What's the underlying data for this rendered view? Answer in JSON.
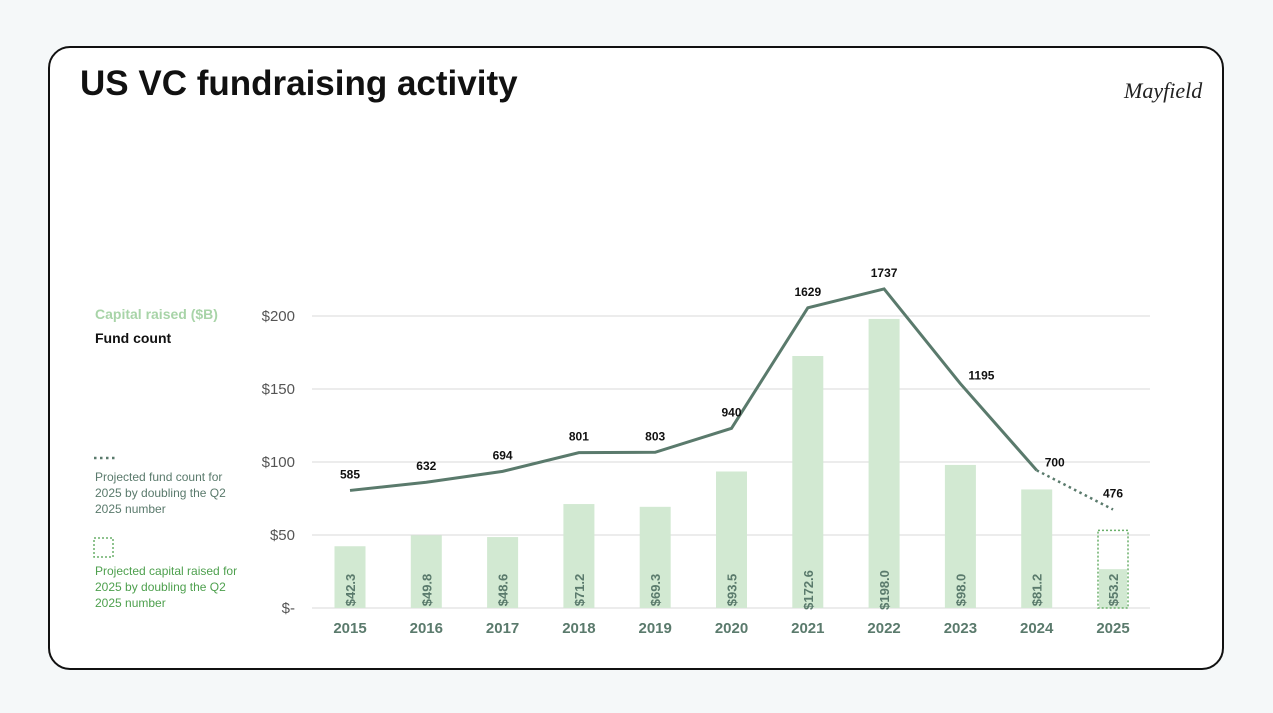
{
  "header": {
    "title": "US VC fundraising activity",
    "logo": "Mayfield"
  },
  "legend": {
    "capital": "Capital raised ($B)",
    "count": "Fund count",
    "note_count": "Projected fund count for 2025 by doubling the Q2 2025 number",
    "note_capital": "Projected capital raised for 2025 by doubling the Q2 2025 number"
  },
  "chart_data": {
    "type": "bar_line",
    "categories": [
      "2015",
      "2016",
      "2017",
      "2018",
      "2019",
      "2020",
      "2021",
      "2022",
      "2023",
      "2024",
      "2025"
    ],
    "series": [
      {
        "name": "Capital raised ($B)",
        "type": "bar",
        "color": "#d2e9d2",
        "values": [
          42.3,
          49.8,
          48.6,
          71.2,
          69.3,
          93.5,
          172.6,
          198.0,
          98.0,
          81.2,
          53.2
        ],
        "value_labels": [
          "$42.3",
          "$49.8",
          "$48.6",
          "$71.2",
          "$69.3",
          "$93.5",
          "$172.6",
          "$198.0",
          "$98.0",
          "$81.2",
          "$53.2"
        ],
        "q2_2025": 26.6
      },
      {
        "name": "Fund count",
        "type": "line",
        "axis": "y2",
        "color": "#5a7a6c",
        "values": [
          585,
          632,
          694,
          801,
          803,
          940,
          1629,
          1737,
          1195,
          700,
          476
        ],
        "last_segment": "dotted"
      }
    ],
    "ylim": [
      0,
      200
    ],
    "yticks": [
      {
        "value": 0,
        "label": "$-"
      },
      {
        "value": 50,
        "label": "$50"
      },
      {
        "value": 100,
        "label": "$100"
      },
      {
        "value": 150,
        "label": "$150"
      },
      {
        "value": 200,
        "label": "$200"
      }
    ],
    "y2lim": [
      -87,
      1582
    ],
    "grid": true
  }
}
